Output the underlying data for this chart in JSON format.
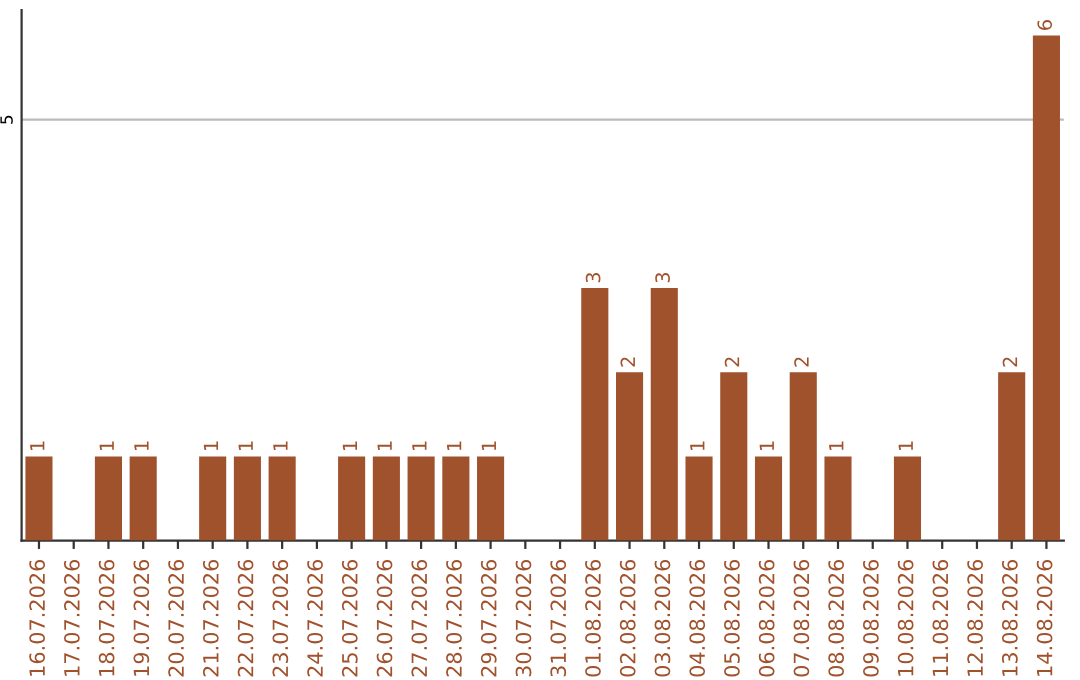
{
  "chart_data": {
    "type": "bar",
    "categories": [
      "16.07.2026",
      "17.07.2026",
      "18.07.2026",
      "19.07.2026",
      "20.07.2026",
      "21.07.2026",
      "22.07.2026",
      "23.07.2026",
      "24.07.2026",
      "25.07.2026",
      "26.07.2026",
      "27.07.2026",
      "28.07.2026",
      "29.07.2026",
      "30.07.2026",
      "31.07.2026",
      "01.08.2026",
      "02.08.2026",
      "03.08.2026",
      "04.08.2026",
      "05.08.2026",
      "06.08.2026",
      "07.08.2026",
      "08.08.2026",
      "09.08.2026",
      "10.08.2026",
      "11.08.2026",
      "12.08.2026",
      "13.08.2026",
      "14.08.2026"
    ],
    "values": [
      1,
      0,
      1,
      1,
      0,
      1,
      1,
      1,
      0,
      1,
      1,
      1,
      1,
      1,
      0,
      0,
      3,
      2,
      3,
      1,
      2,
      1,
      2,
      1,
      0,
      1,
      0,
      0,
      2,
      6
    ],
    "value_labels": [
      "1",
      null,
      "1",
      "1",
      null,
      "1",
      "1",
      "1",
      null,
      "1",
      "1",
      "1",
      "1",
      "1",
      null,
      null,
      "3",
      "2",
      "3",
      "1",
      "2",
      "1",
      "2",
      "1",
      null,
      "1",
      null,
      null,
      "2",
      "6"
    ],
    "color": "#a0522d",
    "ylim": [
      0,
      6.3
    ],
    "yticks": [
      5
    ],
    "grid": "y"
  }
}
